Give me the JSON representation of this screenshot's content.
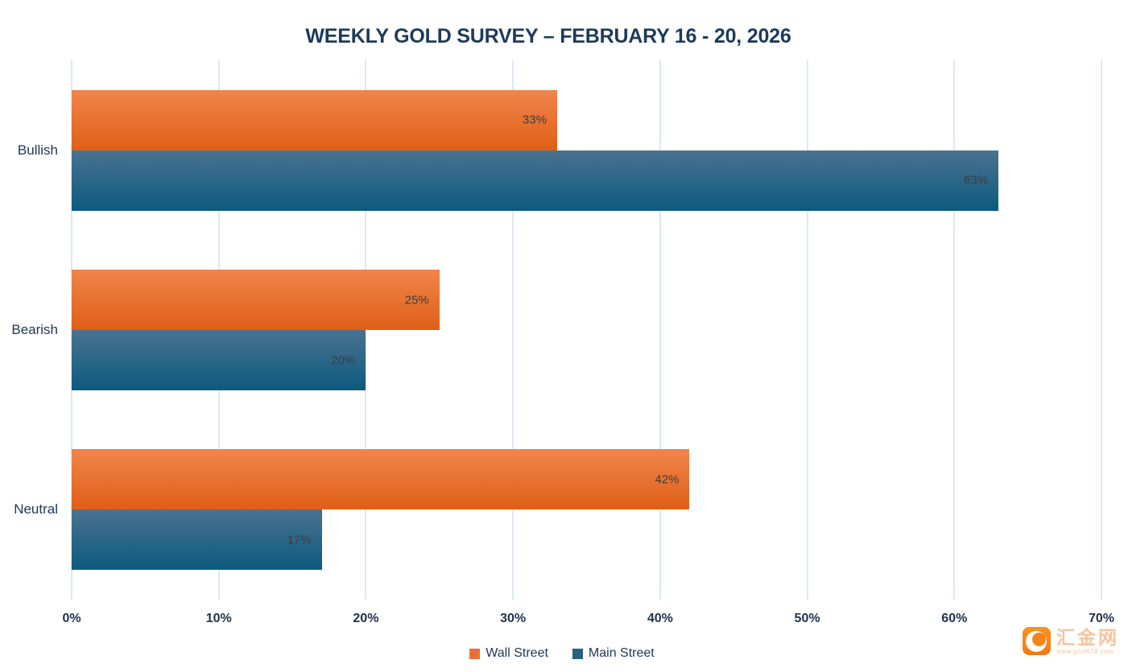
{
  "chart_data": {
    "type": "bar",
    "orientation": "horizontal",
    "title": "WEEKLY GOLD SURVEY – FEBRUARY 16 - 20, 2026",
    "categories": [
      "Bullish",
      "Bearish",
      "Neutral"
    ],
    "series": [
      {
        "name": "Wall Street",
        "values": [
          33,
          25,
          42
        ],
        "gradient": [
          "#F0854C",
          "#DF5F17"
        ],
        "legend_color": "#E96F37"
      },
      {
        "name": "Main Street",
        "values": [
          63,
          20,
          17
        ],
        "gradient": [
          "#4A7290",
          "#0D5A7F"
        ],
        "legend_color": "#26617F"
      }
    ],
    "value_suffix": "%",
    "xlim": [
      0,
      70
    ],
    "x_ticks": [
      "0%",
      "10%",
      "20%",
      "30%",
      "40%",
      "50%",
      "60%",
      "70%"
    ],
    "grid": true,
    "legend_position": "bottom"
  },
  "watermark": {
    "site_name": "汇金网",
    "site_url": "www.gold678.com",
    "brand_color": "#F28718"
  }
}
